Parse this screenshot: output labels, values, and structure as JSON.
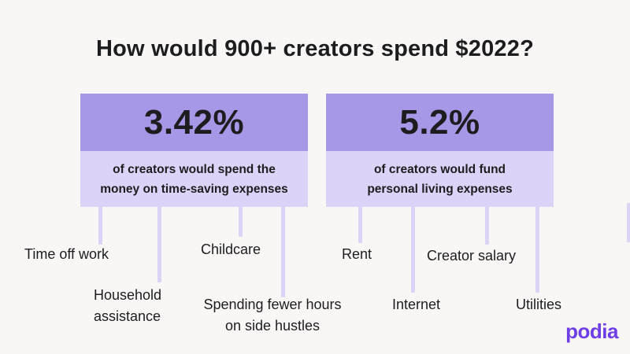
{
  "title": "How would 900+ creators spend $2022?",
  "colors": {
    "background": "#f9f7f5",
    "card_header": "#a897e6",
    "card_body": "#ddd3f8",
    "brand": "#6e3ee6"
  },
  "cards": [
    {
      "percent": "3.42%",
      "description_lines": [
        "of creators would spend the",
        "money on time-saving expenses"
      ],
      "expenses": [
        {
          "lines": [
            "Time off work"
          ]
        },
        {
          "lines": [
            "Household",
            "assistance"
          ]
        },
        {
          "lines": [
            "Childcare"
          ]
        },
        {
          "lines": [
            "Spending fewer hours",
            "on side hustles"
          ]
        }
      ]
    },
    {
      "percent": "5.2%",
      "description_lines": [
        "of creators would fund",
        "personal living expenses"
      ],
      "expenses": [
        {
          "lines": [
            "Rent"
          ]
        },
        {
          "lines": [
            "Internet"
          ]
        },
        {
          "lines": [
            "Creator salary"
          ]
        },
        {
          "lines": [
            "Utilities"
          ]
        }
      ]
    }
  ],
  "brand": "podia"
}
